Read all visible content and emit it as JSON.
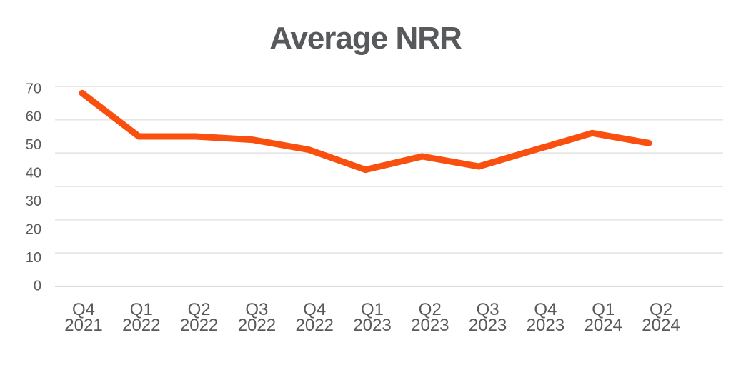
{
  "chart_data": {
    "type": "line",
    "title": "Average NRR",
    "categories": [
      "Q4 2021",
      "Q1 2022",
      "Q2 2022",
      "Q3 2022",
      "Q4 2022",
      "Q1 2023",
      "Q2 2023",
      "Q3 2023",
      "Q4 2023",
      "Q1 2024",
      "Q2 2024"
    ],
    "series": [
      {
        "name": "Average NRR",
        "values": [
          68,
          55,
          55,
          54,
          51,
          45,
          49,
          46,
          51,
          56,
          53
        ]
      }
    ],
    "y_ticks": [
      0,
      10,
      20,
      30,
      40,
      50,
      60,
      70
    ],
    "ylim": [
      0,
      70
    ],
    "xlabel": "",
    "ylabel": "",
    "grid": "horizontal",
    "legend_position": "none",
    "colors": {
      "line": "#FA500F",
      "title_text": "#58595B",
      "axis_text": "#58595B",
      "gridline": "#E7E7E7",
      "axis_baseline": "#D8D8D8"
    }
  }
}
